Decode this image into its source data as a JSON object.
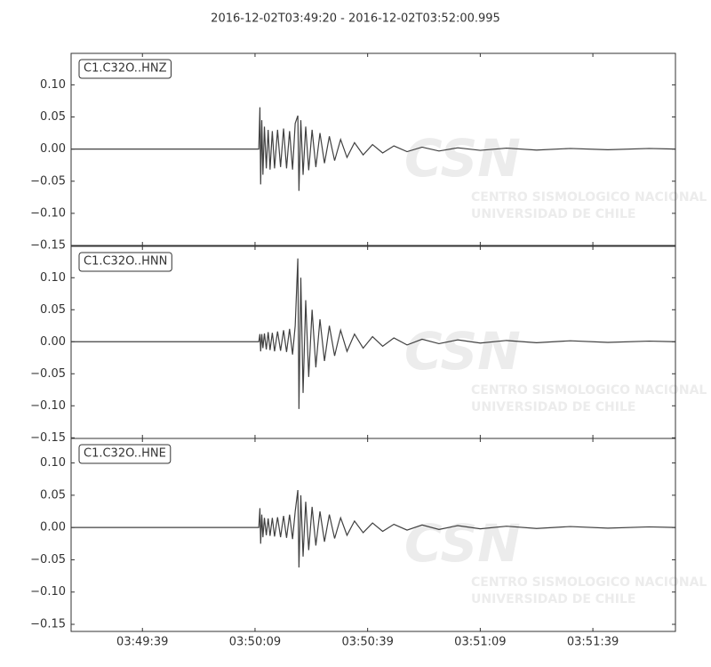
{
  "watermark": {
    "logo": "CSN",
    "line1": "CENTRO SISMOLOGICO NACIONAL",
    "line2": "UNIVERSIDAD DE CHILE"
  },
  "chart_data": [
    {
      "type": "line",
      "title": "2016-12-02T03:49:20  -  2016-12-02T03:52:00.995",
      "label": "C1.C32O..HNZ",
      "color": "#404040",
      "x": [
        0,
        50,
        50.3,
        50.5,
        50.8,
        51.1,
        51.5,
        52,
        52.5,
        53,
        53.6,
        54.2,
        55,
        55.8,
        56.6,
        57.4,
        58.2,
        59,
        59.7,
        60.4,
        60.7,
        61.2,
        61.8,
        62.5,
        63.3,
        64.2,
        65.2,
        66.3,
        67.5,
        68.8,
        70.2,
        71.8,
        73.5,
        75.5,
        77.8,
        80.3,
        83,
        86,
        89.5,
        93.5,
        98,
        103,
        109,
        116,
        124,
        133,
        143,
        154,
        161
      ],
      "values": [
        0,
        0,
        0.065,
        -0.055,
        0.045,
        -0.04,
        0.035,
        -0.03,
        0.03,
        -0.032,
        0.028,
        -0.03,
        0.03,
        -0.028,
        0.032,
        -0.03,
        0.028,
        -0.032,
        0.04,
        0.052,
        -0.065,
        0.045,
        -0.04,
        0.035,
        -0.033,
        0.03,
        -0.028,
        0.025,
        -0.022,
        0.02,
        -0.018,
        0.015,
        -0.013,
        0.01,
        -0.009,
        0.007,
        -0.006,
        0.005,
        -0.004,
        0.003,
        -0.003,
        0.002,
        -0.002,
        0.0015,
        -0.0015,
        0.001,
        -0.001,
        0.001,
        0
      ],
      "xlim": [
        0,
        161
      ],
      "ylim": [
        -0.15,
        0.149
      ],
      "yticks": [
        {
          "value": -0.15,
          "label": "−0.15"
        },
        {
          "value": -0.1,
          "label": "−0.10"
        },
        {
          "value": -0.05,
          "label": "−0.05"
        },
        {
          "value": 0,
          "label": "0.00"
        },
        {
          "value": 0.05,
          "label": "0.05"
        },
        {
          "value": 0.1,
          "label": "0.10"
        }
      ]
    },
    {
      "type": "line",
      "label": "C1.C32O..HNN",
      "color": "#404040",
      "x": [
        0,
        50,
        50.3,
        50.5,
        50.8,
        51.1,
        51.5,
        52,
        52.5,
        53,
        53.6,
        54.2,
        55,
        55.8,
        56.6,
        57.4,
        58.2,
        59,
        59.7,
        60.4,
        60.7,
        61.2,
        61.8,
        62.5,
        63.3,
        64.2,
        65.2,
        66.3,
        67.5,
        68.8,
        70.2,
        71.8,
        73.5,
        75.5,
        77.8,
        80.3,
        83,
        86,
        89.5,
        93.5,
        98,
        103,
        109,
        116,
        124,
        133,
        143,
        154,
        161
      ],
      "values": [
        0,
        0,
        0.012,
        -0.015,
        0.012,
        -0.01,
        0.013,
        -0.012,
        0.015,
        -0.013,
        0.014,
        -0.015,
        0.016,
        -0.014,
        0.018,
        -0.016,
        0.02,
        -0.02,
        0.025,
        0.13,
        -0.105,
        0.1,
        -0.08,
        0.065,
        -0.055,
        0.05,
        -0.04,
        0.035,
        -0.03,
        0.025,
        -0.022,
        0.018,
        -0.015,
        0.012,
        -0.01,
        0.008,
        -0.007,
        0.006,
        -0.005,
        0.004,
        -0.003,
        0.003,
        -0.002,
        0.002,
        -0.0015,
        0.0015,
        -0.001,
        0.001,
        0
      ],
      "xlim": [
        0,
        161
      ],
      "ylim": [
        -0.151,
        0.149
      ],
      "yticks": [
        {
          "value": -0.15,
          "label": "−0.15"
        },
        {
          "value": -0.1,
          "label": "−0.10"
        },
        {
          "value": -0.05,
          "label": "−0.05"
        },
        {
          "value": 0,
          "label": "0.00"
        },
        {
          "value": 0.05,
          "label": "0.05"
        },
        {
          "value": 0.1,
          "label": "0.10"
        }
      ]
    },
    {
      "type": "line",
      "label": "C1.C32O..HNE",
      "color": "#404040",
      "x": [
        0,
        50,
        50.3,
        50.5,
        50.8,
        51.1,
        51.5,
        52,
        52.5,
        53,
        53.6,
        54.2,
        55,
        55.8,
        56.6,
        57.4,
        58.2,
        59,
        59.7,
        60.4,
        60.7,
        61.2,
        61.8,
        62.5,
        63.3,
        64.2,
        65.2,
        66.3,
        67.5,
        68.8,
        70.2,
        71.8,
        73.5,
        75.5,
        77.8,
        80.3,
        83,
        86,
        89.5,
        93.5,
        98,
        103,
        109,
        116,
        124,
        133,
        143,
        154,
        161
      ],
      "values": [
        0,
        0,
        0.03,
        -0.025,
        0.02,
        -0.015,
        0.015,
        -0.012,
        0.014,
        -0.013,
        0.015,
        -0.014,
        0.016,
        -0.015,
        0.018,
        -0.016,
        0.02,
        -0.018,
        0.025,
        0.058,
        -0.062,
        0.05,
        -0.045,
        0.04,
        -0.035,
        0.032,
        -0.028,
        0.025,
        -0.022,
        0.02,
        -0.017,
        0.015,
        -0.012,
        0.01,
        -0.008,
        0.007,
        -0.006,
        0.005,
        -0.004,
        0.004,
        -0.003,
        0.003,
        -0.002,
        0.002,
        -0.0015,
        0.0015,
        -0.001,
        0.001,
        0
      ],
      "xlim": [
        0,
        161
      ],
      "ylim": [
        -0.161,
        0.138
      ],
      "yticks": [
        {
          "value": -0.15,
          "label": "−0.15"
        },
        {
          "value": -0.1,
          "label": "−0.10"
        },
        {
          "value": -0.05,
          "label": "−0.05"
        },
        {
          "value": 0,
          "label": "0.00"
        },
        {
          "value": 0.05,
          "label": "0.05"
        },
        {
          "value": 0.1,
          "label": "0.10"
        }
      ],
      "xticks": [
        {
          "value": 19,
          "label": "03:49:39"
        },
        {
          "value": 49,
          "label": "03:50:09"
        },
        {
          "value": 79,
          "label": "03:50:39"
        },
        {
          "value": 109,
          "label": "03:51:09"
        },
        {
          "value": 139,
          "label": "03:51:39"
        }
      ]
    }
  ]
}
